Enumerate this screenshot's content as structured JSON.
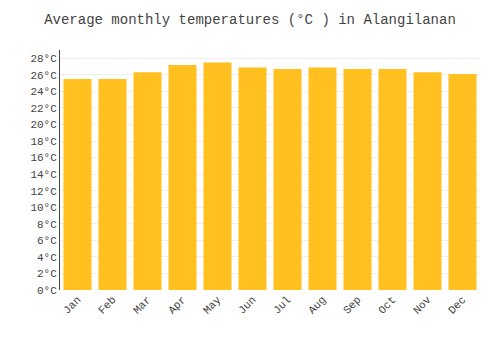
{
  "chart_data": {
    "type": "bar",
    "title": "Average monthly temperatures (°C ) in Alangilanan",
    "categories": [
      "Jan",
      "Feb",
      "Mar",
      "Apr",
      "May",
      "Jun",
      "Jul",
      "Aug",
      "Sep",
      "Oct",
      "Nov",
      "Dec"
    ],
    "values": [
      25.5,
      25.5,
      26.3,
      27.2,
      27.5,
      26.9,
      26.7,
      26.9,
      26.7,
      26.7,
      26.3,
      26.1
    ],
    "color": "#FFC020",
    "ylim": [
      0,
      29
    ],
    "yticks": [
      {
        "value": 0,
        "label": "0°C"
      },
      {
        "value": 2,
        "label": "2°C"
      },
      {
        "value": 4,
        "label": "4°C"
      },
      {
        "value": 6,
        "label": "6°C"
      },
      {
        "value": 8,
        "label": "8°C"
      },
      {
        "value": 10,
        "label": "10°C"
      },
      {
        "value": 12,
        "label": "12°C"
      },
      {
        "value": 14,
        "label": "14°C"
      },
      {
        "value": 16,
        "label": "16°C"
      },
      {
        "value": 18,
        "label": "18°C"
      },
      {
        "value": 20,
        "label": "20°C"
      },
      {
        "value": 22,
        "label": "22°C"
      },
      {
        "value": 24,
        "label": "24°C"
      },
      {
        "value": 26,
        "label": "26°C"
      },
      {
        "value": 28,
        "label": "28°C"
      }
    ],
    "grid": true
  }
}
